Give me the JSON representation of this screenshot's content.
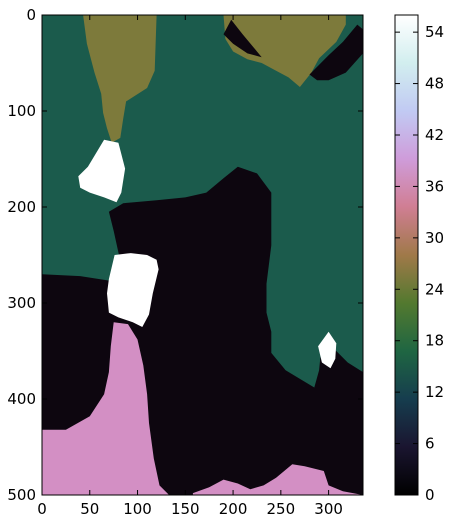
{
  "chart_data": {
    "type": "heatmap",
    "title": "",
    "xlabel": "",
    "ylabel": "",
    "xlim": [
      0,
      336
    ],
    "ylim": [
      500,
      0
    ],
    "x_ticks": [
      0,
      50,
      100,
      150,
      200,
      250,
      300
    ],
    "y_ticks": [
      0,
      100,
      200,
      300,
      400,
      500
    ],
    "colorbar": {
      "colormap": "cubehelix",
      "range": [
        0,
        56
      ],
      "ticks": [
        0,
        6,
        12,
        18,
        24,
        30,
        36,
        42,
        48,
        54
      ]
    },
    "colors": {
      "c0": "#0d060f",
      "c15": "#1b5b4c",
      "c25": "#7d7a3b",
      "c36": "#d38fc4",
      "c56": "#ffffff"
    },
    "regions": [
      {
        "value": 15,
        "points": [
          [
            0,
            0
          ],
          [
            336,
            0
          ],
          [
            336,
            500
          ],
          [
            0,
            500
          ]
        ]
      },
      {
        "value": 0,
        "points": [
          [
            0,
            270
          ],
          [
            40,
            272
          ],
          [
            72,
            277
          ],
          [
            85,
            270
          ],
          [
            75,
            225
          ],
          [
            70,
            205
          ],
          [
            85,
            196
          ],
          [
            120,
            193
          ],
          [
            150,
            190
          ],
          [
            172,
            185
          ],
          [
            190,
            170
          ],
          [
            205,
            158
          ],
          [
            225,
            165
          ],
          [
            240,
            185
          ],
          [
            240,
            240
          ],
          [
            235,
            280
          ],
          [
            235,
            310
          ],
          [
            240,
            330
          ],
          [
            240,
            352
          ],
          [
            255,
            370
          ],
          [
            275,
            382
          ],
          [
            285,
            388
          ],
          [
            290,
            370
          ],
          [
            292,
            350
          ],
          [
            305,
            347
          ],
          [
            320,
            362
          ],
          [
            336,
            372
          ],
          [
            336,
            500
          ],
          [
            0,
            500
          ]
        ]
      },
      {
        "value": 25,
        "points": [
          [
            43,
            0
          ],
          [
            120,
            0
          ],
          [
            118,
            58
          ],
          [
            110,
            76
          ],
          [
            88,
            90
          ],
          [
            85,
            108
          ],
          [
            82,
            128
          ],
          [
            73,
            133
          ],
          [
            68,
            118
          ],
          [
            64,
            102
          ],
          [
            62,
            82
          ],
          [
            55,
            60
          ],
          [
            47,
            30
          ]
        ]
      },
      {
        "value": 25,
        "points": [
          [
            190,
            0
          ],
          [
            318,
            0
          ],
          [
            318,
            10
          ],
          [
            308,
            28
          ],
          [
            290,
            45
          ],
          [
            282,
            60
          ],
          [
            270,
            75
          ],
          [
            258,
            65
          ],
          [
            245,
            58
          ],
          [
            230,
            50
          ],
          [
            215,
            46
          ],
          [
            200,
            38
          ],
          [
            192,
            25
          ]
        ]
      },
      {
        "value": 56,
        "points": [
          [
            65,
            130
          ],
          [
            80,
            133
          ],
          [
            87,
            160
          ],
          [
            83,
            185
          ],
          [
            78,
            195
          ],
          [
            65,
            190
          ],
          [
            50,
            185
          ],
          [
            40,
            180
          ],
          [
            38,
            168
          ],
          [
            48,
            158
          ]
        ]
      },
      {
        "value": 56,
        "points": [
          [
            76,
            250
          ],
          [
            93,
            248
          ],
          [
            110,
            250
          ],
          [
            120,
            255
          ],
          [
            122,
            265
          ],
          [
            116,
            290
          ],
          [
            112,
            312
          ],
          [
            105,
            325
          ],
          [
            95,
            320
          ],
          [
            80,
            315
          ],
          [
            70,
            310
          ],
          [
            68,
            290
          ],
          [
            70,
            275
          ]
        ]
      },
      {
        "value": 56,
        "points": [
          [
            300,
            330
          ],
          [
            308,
            342
          ],
          [
            307,
            358
          ],
          [
            302,
            368
          ],
          [
            293,
            362
          ],
          [
            289,
            345
          ]
        ]
      },
      {
        "value": 36,
        "points": [
          [
            0,
            432
          ],
          [
            25,
            432
          ],
          [
            50,
            418
          ],
          [
            65,
            395
          ],
          [
            70,
            372
          ],
          [
            72,
            345
          ],
          [
            75,
            320
          ],
          [
            90,
            322
          ],
          [
            100,
            338
          ],
          [
            106,
            365
          ],
          [
            110,
            395
          ],
          [
            112,
            425
          ],
          [
            117,
            462
          ],
          [
            123,
            490
          ],
          [
            133,
            500
          ],
          [
            0,
            500
          ]
        ]
      },
      {
        "value": 36,
        "points": [
          [
            158,
            498
          ],
          [
            175,
            492
          ],
          [
            190,
            484
          ],
          [
            205,
            488
          ],
          [
            218,
            494
          ],
          [
            232,
            490
          ],
          [
            245,
            482
          ],
          [
            262,
            468
          ],
          [
            275,
            470
          ],
          [
            295,
            475
          ],
          [
            300,
            490
          ],
          [
            315,
            496
          ],
          [
            336,
            500
          ],
          [
            158,
            500
          ]
        ]
      },
      {
        "value": 0,
        "points": [
          [
            198,
            5
          ],
          [
            210,
            20
          ],
          [
            230,
            44
          ],
          [
            215,
            40
          ],
          [
            200,
            30
          ],
          [
            190,
            20
          ]
        ]
      },
      {
        "value": 0,
        "points": [
          [
            330,
            10
          ],
          [
            336,
            15
          ],
          [
            336,
            40
          ],
          [
            318,
            60
          ],
          [
            300,
            68
          ],
          [
            288,
            68
          ],
          [
            280,
            62
          ],
          [
            300,
            42
          ],
          [
            315,
            28
          ]
        ]
      }
    ]
  }
}
